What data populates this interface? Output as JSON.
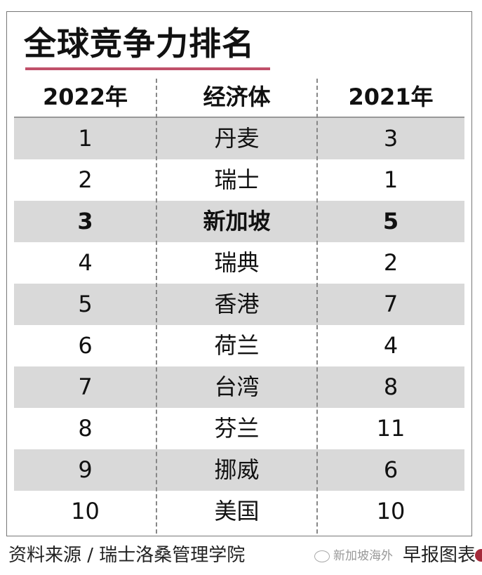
{
  "title": "全球竞争力排名",
  "accent_color": "#c0506a",
  "headers": [
    "2022年",
    "经济体",
    "2021年"
  ],
  "rows": [
    {
      "rank_2022": "1",
      "economy": "丹麦",
      "rank_2021": "3"
    },
    {
      "rank_2022": "2",
      "economy": "瑞士",
      "rank_2021": "1"
    },
    {
      "rank_2022": "3",
      "economy": "新加坡",
      "rank_2021": "5",
      "highlight": true
    },
    {
      "rank_2022": "4",
      "economy": "瑞典",
      "rank_2021": "2"
    },
    {
      "rank_2022": "5",
      "economy": "香港",
      "rank_2021": "7"
    },
    {
      "rank_2022": "6",
      "economy": "荷兰",
      "rank_2021": "4"
    },
    {
      "rank_2022": "7",
      "economy": "台湾",
      "rank_2021": "8"
    },
    {
      "rank_2022": "8",
      "economy": "芬兰",
      "rank_2021": "11"
    },
    {
      "rank_2022": "9",
      "economy": "挪威",
      "rank_2021": "6"
    },
    {
      "rank_2022": "10",
      "economy": "美国",
      "rank_2021": "10"
    }
  ],
  "footer": {
    "source": "资料来源 / 瑞士洛桑管理学院",
    "brand": "早报图表",
    "watermark": "新加坡海外"
  }
}
